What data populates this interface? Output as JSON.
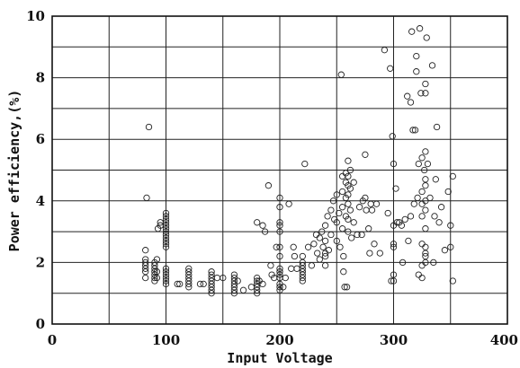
{
  "chart_data": {
    "type": "scatter",
    "title": "",
    "xlabel": "Input Voltage",
    "ylabel": "Power efficiency,(%)",
    "xlim": [
      0,
      400
    ],
    "ylim": [
      0,
      10
    ],
    "x_ticks": [
      "0",
      "100",
      "200",
      "300",
      "400"
    ],
    "y_ticks": [
      "0",
      "2",
      "4",
      "6",
      "8",
      "10"
    ],
    "x_grid": [
      50,
      100,
      150,
      200,
      250,
      300,
      350
    ],
    "y_grid": [
      1,
      2,
      3,
      4,
      5,
      6,
      7,
      8,
      9
    ],
    "grid": true,
    "marker": "open-circle",
    "series": [
      {
        "points": [
          [
            82,
            2.4
          ],
          [
            82,
            2.1
          ],
          [
            82,
            2.0
          ],
          [
            82,
            1.9
          ],
          [
            82,
            1.8
          ],
          [
            82,
            1.7
          ],
          [
            82,
            1.5
          ],
          [
            83,
            4.1
          ],
          [
            85,
            6.4
          ],
          [
            90,
            2.0
          ],
          [
            90,
            1.9
          ],
          [
            90,
            1.8
          ],
          [
            90,
            1.7
          ],
          [
            90,
            1.6
          ],
          [
            90,
            1.5
          ],
          [
            90,
            1.4
          ],
          [
            92,
            2.1
          ],
          [
            92,
            1.7
          ],
          [
            92,
            1.5
          ],
          [
            93,
            3.1
          ],
          [
            95,
            3.3
          ],
          [
            95,
            3.2
          ],
          [
            100,
            3.6
          ],
          [
            100,
            3.5
          ],
          [
            100,
            3.4
          ],
          [
            100,
            3.3
          ],
          [
            100,
            3.2
          ],
          [
            100,
            3.1
          ],
          [
            100,
            3.0
          ],
          [
            100,
            2.9
          ],
          [
            100,
            2.8
          ],
          [
            100,
            2.7
          ],
          [
            100,
            2.6
          ],
          [
            100,
            2.5
          ],
          [
            100,
            1.8
          ],
          [
            100,
            1.7
          ],
          [
            100,
            1.6
          ],
          [
            100,
            1.5
          ],
          [
            100,
            1.4
          ],
          [
            100,
            1.3
          ],
          [
            110,
            1.3
          ],
          [
            112,
            1.3
          ],
          [
            120,
            1.8
          ],
          [
            120,
            1.7
          ],
          [
            120,
            1.6
          ],
          [
            120,
            1.5
          ],
          [
            120,
            1.4
          ],
          [
            120,
            1.3
          ],
          [
            120,
            1.2
          ],
          [
            130,
            1.3
          ],
          [
            133,
            1.3
          ],
          [
            140,
            1.7
          ],
          [
            140,
            1.6
          ],
          [
            140,
            1.5
          ],
          [
            140,
            1.4
          ],
          [
            140,
            1.3
          ],
          [
            140,
            1.2
          ],
          [
            140,
            1.1
          ],
          [
            140,
            1.0
          ],
          [
            145,
            1.5
          ],
          [
            150,
            1.5
          ],
          [
            160,
            1.6
          ],
          [
            160,
            1.5
          ],
          [
            160,
            1.4
          ],
          [
            160,
            1.3
          ],
          [
            160,
            1.2
          ],
          [
            160,
            1.1
          ],
          [
            160,
            1.0
          ],
          [
            163,
            1.4
          ],
          [
            168,
            1.1
          ],
          [
            175,
            1.2
          ],
          [
            180,
            1.5
          ],
          [
            180,
            1.4
          ],
          [
            180,
            1.3
          ],
          [
            180,
            1.2
          ],
          [
            180,
            1.1
          ],
          [
            180,
            1.0
          ],
          [
            182,
            1.4
          ],
          [
            185,
            1.3
          ],
          [
            180,
            3.3
          ],
          [
            185,
            3.2
          ],
          [
            187,
            3.0
          ],
          [
            190,
            4.5
          ],
          [
            192,
            1.9
          ],
          [
            193,
            1.6
          ],
          [
            195,
            1.5
          ],
          [
            197,
            2.5
          ],
          [
            200,
            4.1
          ],
          [
            200,
            3.8
          ],
          [
            200,
            3.3
          ],
          [
            200,
            3.2
          ],
          [
            200,
            3.0
          ],
          [
            200,
            2.5
          ],
          [
            200,
            2.2
          ],
          [
            200,
            1.8
          ],
          [
            200,
            1.7
          ],
          [
            200,
            1.6
          ],
          [
            200,
            1.5
          ],
          [
            200,
            1.3
          ],
          [
            200,
            1.2
          ],
          [
            200,
            1.1
          ],
          [
            203,
            1.2
          ],
          [
            205,
            1.5
          ],
          [
            208,
            3.9
          ],
          [
            210,
            1.8
          ],
          [
            212,
            2.5
          ],
          [
            213,
            2.2
          ],
          [
            215,
            1.8
          ],
          [
            220,
            2.2
          ],
          [
            220,
            2.0
          ],
          [
            220,
            1.9
          ],
          [
            220,
            1.8
          ],
          [
            220,
            1.7
          ],
          [
            220,
            1.6
          ],
          [
            220,
            1.5
          ],
          [
            220,
            1.4
          ],
          [
            222,
            5.2
          ],
          [
            225,
            2.5
          ],
          [
            228,
            1.9
          ],
          [
            230,
            2.6
          ],
          [
            232,
            2.9
          ],
          [
            233,
            2.3
          ],
          [
            235,
            2.8
          ],
          [
            235,
            2.1
          ],
          [
            237,
            3.0
          ],
          [
            238,
            2.5
          ],
          [
            240,
            3.2
          ],
          [
            240,
            2.7
          ],
          [
            240,
            2.3
          ],
          [
            240,
            2.2
          ],
          [
            240,
            1.9
          ],
          [
            242,
            3.5
          ],
          [
            243,
            2.4
          ],
          [
            245,
            3.7
          ],
          [
            245,
            2.9
          ],
          [
            247,
            4.0
          ],
          [
            248,
            3.4
          ],
          [
            250,
            4.2
          ],
          [
            250,
            3.3
          ],
          [
            250,
            2.7
          ],
          [
            252,
            3.6
          ],
          [
            253,
            2.5
          ],
          [
            254,
            8.1
          ],
          [
            255,
            4.8
          ],
          [
            255,
            4.3
          ],
          [
            255,
            3.8
          ],
          [
            255,
            3.1
          ],
          [
            256,
            2.2
          ],
          [
            256,
            1.7
          ],
          [
            257,
            1.2
          ],
          [
            258,
            4.9
          ],
          [
            258,
            4.6
          ],
          [
            258,
            4.1
          ],
          [
            258,
            3.5
          ],
          [
            259,
            1.2
          ],
          [
            260,
            5.3
          ],
          [
            260,
            4.8
          ],
          [
            260,
            4.5
          ],
          [
            260,
            4.2
          ],
          [
            260,
            3.9
          ],
          [
            260,
            3.4
          ],
          [
            260,
            3.0
          ],
          [
            262,
            5.0
          ],
          [
            262,
            4.4
          ],
          [
            262,
            3.7
          ],
          [
            263,
            2.8
          ],
          [
            265,
            4.6
          ],
          [
            265,
            3.3
          ],
          [
            268,
            2.9
          ],
          [
            270,
            3.8
          ],
          [
            272,
            2.9
          ],
          [
            273,
            4.0
          ],
          [
            275,
            5.5
          ],
          [
            275,
            4.1
          ],
          [
            276,
            3.7
          ],
          [
            278,
            3.1
          ],
          [
            279,
            2.3
          ],
          [
            280,
            3.9
          ],
          [
            281,
            3.7
          ],
          [
            283,
            2.6
          ],
          [
            285,
            3.9
          ],
          [
            288,
            2.3
          ],
          [
            292,
            8.9
          ],
          [
            295,
            3.6
          ],
          [
            297,
            8.3
          ],
          [
            298,
            1.4
          ],
          [
            299,
            6.1
          ],
          [
            300,
            5.2
          ],
          [
            300,
            3.2
          ],
          [
            300,
            2.6
          ],
          [
            300,
            2.5
          ],
          [
            300,
            1.6
          ],
          [
            300,
            1.4
          ],
          [
            302,
            4.4
          ],
          [
            303,
            3.3
          ],
          [
            305,
            3.3
          ],
          [
            307,
            3.2
          ],
          [
            308,
            2.0
          ],
          [
            310,
            3.4
          ],
          [
            312,
            7.4
          ],
          [
            313,
            2.7
          ],
          [
            315,
            7.2
          ],
          [
            315,
            3.5
          ],
          [
            316,
            9.5
          ],
          [
            317,
            6.3
          ],
          [
            318,
            3.9
          ],
          [
            319,
            6.3
          ],
          [
            320,
            8.2
          ],
          [
            320,
            8.7
          ],
          [
            321,
            4.1
          ],
          [
            322,
            5.2
          ],
          [
            322,
            1.6
          ],
          [
            323,
            9.6
          ],
          [
            324,
            7.5
          ],
          [
            325,
            5.4
          ],
          [
            325,
            4.3
          ],
          [
            325,
            3.9
          ],
          [
            325,
            3.5
          ],
          [
            325,
            2.6
          ],
          [
            325,
            1.9
          ],
          [
            325,
            1.5
          ],
          [
            327,
            5.0
          ],
          [
            328,
            7.8
          ],
          [
            328,
            7.5
          ],
          [
            328,
            5.6
          ],
          [
            328,
            4.7
          ],
          [
            328,
            4.5
          ],
          [
            328,
            4.0
          ],
          [
            328,
            3.7
          ],
          [
            328,
            3.1
          ],
          [
            328,
            2.5
          ],
          [
            328,
            2.3
          ],
          [
            328,
            2.2
          ],
          [
            328,
            2.0
          ],
          [
            329,
            9.3
          ],
          [
            330,
            5.2
          ],
          [
            332,
            4.1
          ],
          [
            334,
            8.4
          ],
          [
            335,
            2.0
          ],
          [
            336,
            3.5
          ],
          [
            337,
            4.7
          ],
          [
            338,
            6.4
          ],
          [
            340,
            3.3
          ],
          [
            342,
            3.8
          ],
          [
            345,
            2.4
          ],
          [
            348,
            4.3
          ],
          [
            350,
            3.2
          ],
          [
            350,
            2.5
          ],
          [
            352,
            1.4
          ],
          [
            352,
            4.8
          ]
        ]
      }
    ]
  }
}
